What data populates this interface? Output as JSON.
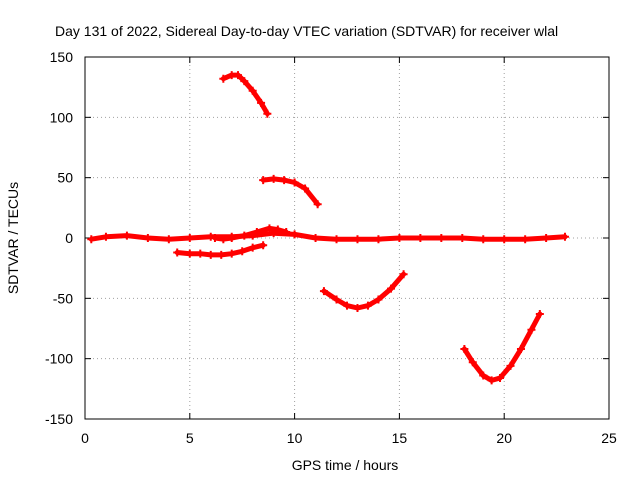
{
  "chart_data": {
    "type": "scatter",
    "title": "Day 131 of 2022, Sidereal Day-to-day VTEC variation (SDTVAR) for receiver wlal",
    "xlabel": "GPS time / hours",
    "ylabel": "SDTVAR / TECUs",
    "xlim": [
      0,
      25
    ],
    "ylim": [
      -150,
      150
    ],
    "xticks": [
      0,
      5,
      10,
      15,
      20,
      25
    ],
    "yticks": [
      -150,
      -100,
      -50,
      0,
      50,
      100,
      150
    ],
    "grid": true,
    "marker_color": "#ff0000",
    "series": [
      {
        "name": "arc-near-zero-main",
        "points": [
          [
            0.3,
            -1
          ],
          [
            1,
            1
          ],
          [
            2,
            2
          ],
          [
            3,
            0
          ],
          [
            4,
            -1
          ],
          [
            5,
            0
          ],
          [
            6,
            1
          ],
          [
            7,
            1
          ],
          [
            8,
            2
          ],
          [
            9,
            4
          ],
          [
            10,
            3
          ],
          [
            11,
            0
          ],
          [
            12,
            -1
          ],
          [
            13,
            -1
          ],
          [
            14,
            -1
          ],
          [
            15,
            0
          ],
          [
            16,
            0
          ],
          [
            17,
            0
          ],
          [
            18,
            0
          ],
          [
            19,
            -1
          ],
          [
            20,
            -1
          ],
          [
            21,
            -1
          ],
          [
            22,
            0
          ],
          [
            22.9,
            1
          ]
        ]
      },
      {
        "name": "arc-near-zero-short",
        "points": [
          [
            6.2,
            0
          ],
          [
            6.6,
            -1
          ],
          [
            7,
            0
          ],
          [
            7.6,
            2
          ],
          [
            8.2,
            5
          ],
          [
            8.8,
            8
          ],
          [
            9.2,
            7
          ],
          [
            9.6,
            5
          ]
        ]
      },
      {
        "name": "arc-minus-12",
        "points": [
          [
            4.4,
            -12
          ],
          [
            5,
            -13
          ],
          [
            5.5,
            -13
          ],
          [
            6,
            -14
          ],
          [
            6.5,
            -14
          ],
          [
            7,
            -13
          ],
          [
            7.5,
            -11
          ],
          [
            8,
            -8
          ],
          [
            8.5,
            -6
          ]
        ]
      },
      {
        "name": "arc-130",
        "points": [
          [
            6.6,
            132
          ],
          [
            7,
            135
          ],
          [
            7.3,
            135
          ],
          [
            7.6,
            130
          ],
          [
            8,
            122
          ],
          [
            8.4,
            112
          ],
          [
            8.7,
            103
          ]
        ]
      },
      {
        "name": "arc-48",
        "points": [
          [
            8.5,
            48
          ],
          [
            9,
            49
          ],
          [
            9.5,
            48
          ],
          [
            10,
            46
          ],
          [
            10.5,
            41
          ],
          [
            11.1,
            28
          ]
        ]
      },
      {
        "name": "arc-minus-55",
        "points": [
          [
            11.4,
            -44
          ],
          [
            12,
            -51
          ],
          [
            12.5,
            -56
          ],
          [
            13,
            -58
          ],
          [
            13.5,
            -56
          ],
          [
            14,
            -51
          ],
          [
            14.6,
            -42
          ],
          [
            15.2,
            -30
          ]
        ]
      },
      {
        "name": "arc-minus-115",
        "points": [
          [
            18.1,
            -92
          ],
          [
            18.5,
            -103
          ],
          [
            19,
            -114
          ],
          [
            19.4,
            -118
          ],
          [
            19.8,
            -116
          ],
          [
            20.3,
            -106
          ],
          [
            20.8,
            -92
          ],
          [
            21.3,
            -76
          ],
          [
            21.7,
            -63
          ]
        ]
      }
    ]
  }
}
